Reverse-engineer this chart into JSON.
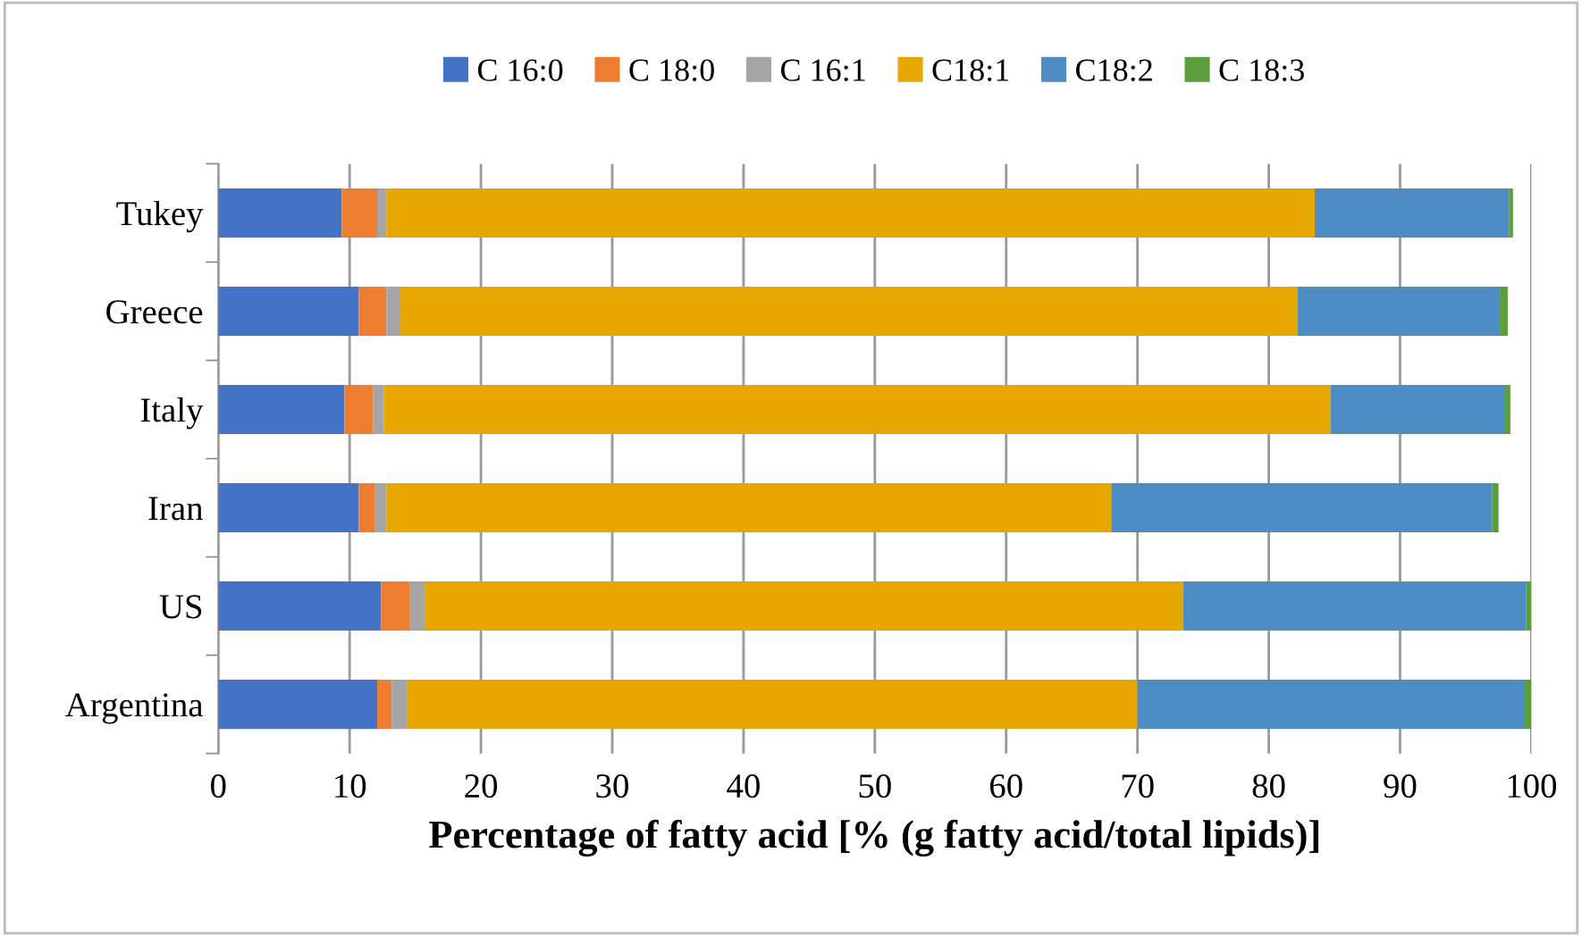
{
  "chart_data": {
    "type": "bar",
    "orientation": "horizontal",
    "stacked": true,
    "xlabel": "Percentage of fatty acid [% (g fatty acid/total lipids)]",
    "categories": [
      "Tukey",
      "Greece",
      "Italy",
      "Iran",
      "US",
      "Argentina"
    ],
    "series": [
      {
        "name": "C 16:0",
        "color": "#4472c4",
        "values": [
          9.4,
          10.7,
          9.6,
          10.7,
          12.4,
          12.1
        ]
      },
      {
        "name": "C 18:0",
        "color": "#ed7d31",
        "values": [
          2.7,
          2.1,
          2.2,
          1.2,
          2.2,
          1.1
        ]
      },
      {
        "name": "C 16:1",
        "color": "#a5a5a5",
        "values": [
          0.7,
          1.0,
          0.8,
          0.9,
          1.1,
          1.2
        ]
      },
      {
        "name": "C18:1",
        "color": "#e6a800",
        "values": [
          70.7,
          68.4,
          72.1,
          55.2,
          57.8,
          55.6
        ]
      },
      {
        "name": "C18:2",
        "color": "#4e8cc4",
        "values": [
          14.8,
          15.4,
          13.3,
          29.0,
          26.1,
          29.5
        ]
      },
      {
        "name": "C 18:3",
        "color": "#5a9e3c",
        "values": [
          0.3,
          0.6,
          0.4,
          0.5,
          0.4,
          0.5
        ]
      }
    ],
    "xlim": [
      0,
      100
    ],
    "xticks": [
      0,
      10,
      20,
      30,
      40,
      50,
      60,
      70,
      80,
      90,
      100
    ],
    "grid": "x",
    "legend": "top"
  }
}
